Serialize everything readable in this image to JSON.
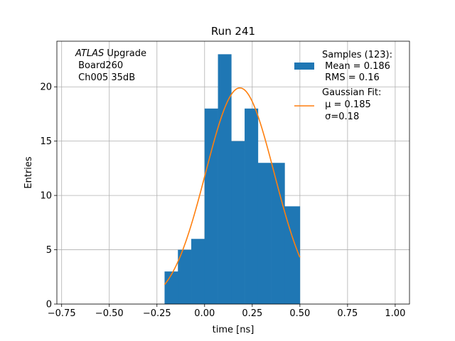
{
  "chart_data": {
    "type": "bar",
    "title": "Run 241",
    "xlabel": "time [ns]",
    "ylabel": "Entries",
    "xlim": [
      -0.775,
      1.075
    ],
    "ylim": [
      0,
      24.2
    ],
    "xticks": [
      -0.75,
      -0.5,
      -0.25,
      0.0,
      0.25,
      0.5,
      0.75,
      1.0
    ],
    "xtick_labels": [
      "−0.75",
      "−0.50",
      "−0.25",
      "0.00",
      "0.25",
      "0.50",
      "0.75",
      "1.00"
    ],
    "yticks": [
      0,
      5,
      10,
      15,
      20
    ],
    "ytick_labels": [
      "0",
      "5",
      "10",
      "15",
      "20"
    ],
    "grid": true,
    "histogram": {
      "name": "Samples (123):",
      "color": "#1f77b4",
      "bin_edges": [
        -0.21,
        -0.14,
        -0.07,
        0.0,
        0.07,
        0.14,
        0.21,
        0.28,
        0.35,
        0.42,
        0.5
      ],
      "counts": [
        3,
        5,
        6,
        18,
        23,
        15,
        18,
        13,
        13,
        9
      ]
    },
    "fit": {
      "name": "Gaussian Fit:",
      "color": "#ff7f0e",
      "amplitude": 19.9,
      "mu": 0.185,
      "sigma": 0.18,
      "x_range": [
        -0.21,
        0.5
      ]
    },
    "legend": {
      "position": "upper right",
      "entries": [
        {
          "lines": [
            "Samples (123):",
            " Mean = 0.186",
            " RMS = 0.16"
          ],
          "kind": "patch",
          "color": "#1f77b4"
        },
        {
          "lines": [
            "Gaussian Fit:",
            " μ = 0.185",
            " σ=0.18"
          ],
          "kind": "line",
          "color": "#ff7f0e"
        }
      ]
    },
    "annotation": {
      "position": "upper left",
      "italic": "ATLAS",
      "lines": [
        " Upgrade",
        " Board260",
        " Ch005 35dB"
      ]
    }
  }
}
